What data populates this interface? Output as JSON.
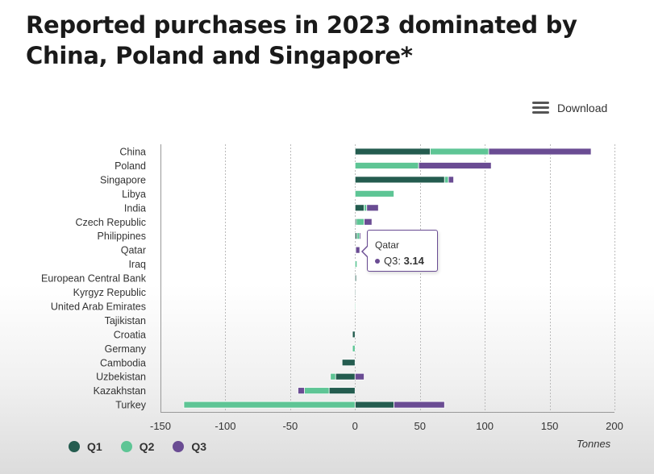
{
  "page": {
    "title": "Reported purchases in 2023 dominated by China, Poland and Singapore*",
    "download_label": "Download",
    "x_unit_label": "Tonnes"
  },
  "colors": {
    "Q1": "#245c4f",
    "Q2": "#5ec595",
    "Q3": "#6a4c93"
  },
  "tooltip": {
    "category": "Qatar",
    "series": "Q3",
    "value": "3.14"
  },
  "chart_data": {
    "type": "bar",
    "orientation": "horizontal",
    "stacked": true,
    "title": "Reported purchases in 2023 dominated by China, Poland and Singapore*",
    "xlabel": "Tonnes",
    "xlim": [
      -150,
      200
    ],
    "xticks": [
      -150,
      -100,
      -50,
      0,
      50,
      100,
      150,
      200
    ],
    "grid": "vertical",
    "legend": "bottom-left",
    "categories": [
      "China",
      "Poland",
      "Singapore",
      "Libya",
      "India",
      "Czech Republic",
      "Philippines",
      "Qatar",
      "Iraq",
      "European Central Bank",
      "Kyrgyz Republic",
      "United Arab Emirates",
      "Tajikistan",
      "Croatia",
      "Germany",
      "Cambodia",
      "Uzbekistan",
      "Kazakhstan",
      "Turkey"
    ],
    "series": [
      {
        "name": "Q1",
        "values": [
          58,
          0,
          69,
          0,
          7,
          1,
          1.5,
          0,
          0,
          1,
          0.3,
          0,
          0,
          -2,
          0,
          -10,
          -15,
          -20,
          30
        ]
      },
      {
        "name": "Q2",
        "values": [
          45,
          49,
          3,
          30,
          2,
          6,
          2,
          0.5,
          1.5,
          0,
          0,
          0.5,
          0,
          0,
          -2,
          0,
          -4,
          -19,
          -132
        ]
      },
      {
        "name": "Q3",
        "values": [
          79,
          56,
          4,
          0,
          9,
          6,
          1,
          3.14,
          0,
          0,
          0,
          0,
          0,
          0,
          0,
          0,
          7,
          -5,
          39
        ]
      }
    ]
  }
}
